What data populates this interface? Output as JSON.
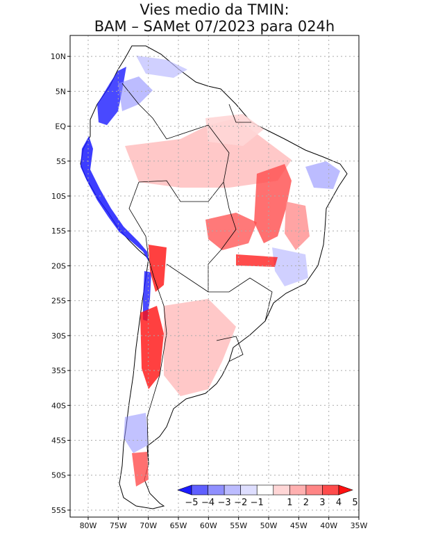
{
  "title": {
    "line1": "Vies medio da TMIN:",
    "line2": "BAM – SAMet 07/2023  para 024h"
  },
  "map": {
    "lon_range": [
      -83,
      -35
    ],
    "lat_range": [
      -56,
      13
    ],
    "grid": "dotted",
    "lat_labels": [
      "10N",
      "5N",
      "EQ",
      "5S",
      "10S",
      "15S",
      "20S",
      "25S",
      "30S",
      "35S",
      "40S",
      "45S",
      "50S",
      "55S"
    ],
    "lon_labels": [
      "80W",
      "75W",
      "70W",
      "65W",
      "60W",
      "55W",
      "50W",
      "45W",
      "40W",
      "35W"
    ]
  },
  "colorbar": {
    "labels": [
      "−5",
      "−4",
      "−3",
      "−2",
      "−1",
      "1",
      "2",
      "3",
      "4",
      "5"
    ],
    "colors": [
      "#1b1bff",
      "#5f5fff",
      "#9090ff",
      "#bcbcff",
      "#dedeff",
      "#ffffff",
      "#ffd6d6",
      "#ffb0b0",
      "#ff8585",
      "#ff4c4c",
      "#ff1010"
    ]
  }
}
